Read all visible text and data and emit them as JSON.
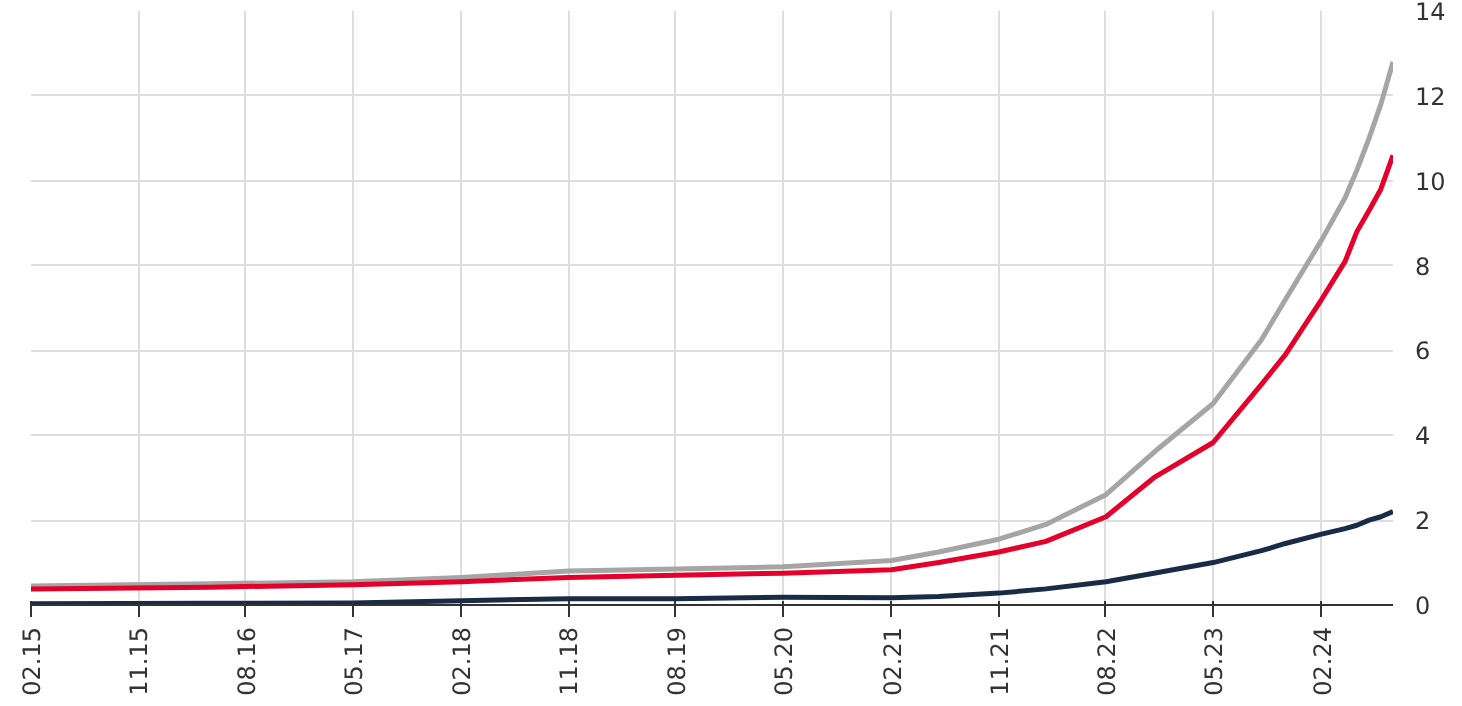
{
  "chart_data": {
    "type": "line",
    "x": [
      "2015-02",
      "2016-05",
      "2017-05",
      "2018-02",
      "2018-11",
      "2019-08",
      "2020-05",
      "2021-02",
      "2021-06",
      "2021-11",
      "2022-03",
      "2022-08",
      "2022-12",
      "2023-05",
      "2023-09",
      "2023-11",
      "2024-02",
      "2024-04",
      "2024-05",
      "2024-06",
      "2024-07",
      "2024-08"
    ],
    "series": [
      {
        "color": "#a5a5a5",
        "values": [
          0.45,
          0.5,
          0.55,
          0.65,
          0.8,
          0.85,
          0.9,
          1.05,
          1.25,
          1.55,
          1.9,
          2.6,
          3.6,
          4.75,
          6.25,
          7.2,
          8.6,
          9.6,
          10.25,
          11.0,
          11.8,
          12.8
        ]
      },
      {
        "color": "#e4002b",
        "values": [
          0.38,
          0.42,
          0.48,
          0.55,
          0.65,
          0.7,
          0.75,
          0.83,
          1.0,
          1.25,
          1.5,
          2.08,
          3.0,
          3.83,
          5.2,
          5.9,
          7.2,
          8.1,
          8.8,
          9.3,
          9.8,
          10.6
        ]
      },
      {
        "color": "#1a2b45",
        "values": [
          0.03,
          0.04,
          0.05,
          0.1,
          0.15,
          0.15,
          0.18,
          0.17,
          0.2,
          0.28,
          0.38,
          0.55,
          0.75,
          1.0,
          1.28,
          1.45,
          1.67,
          1.8,
          1.88,
          2.0,
          2.08,
          2.2
        ]
      }
    ],
    "xlim": [
      "2015-02",
      "2024-08"
    ],
    "xticks": [
      {
        "value": "2015-02",
        "label": "02.15"
      },
      {
        "value": "2015-11",
        "label": "11.15"
      },
      {
        "value": "2016-08",
        "label": "08.16"
      },
      {
        "value": "2017-05",
        "label": "05.17"
      },
      {
        "value": "2018-02",
        "label": "02.18"
      },
      {
        "value": "2018-11",
        "label": "11.18"
      },
      {
        "value": "2019-08",
        "label": "08.19"
      },
      {
        "value": "2020-05",
        "label": "05.20"
      },
      {
        "value": "2021-02",
        "label": "02.21"
      },
      {
        "value": "2021-11",
        "label": "11.21"
      },
      {
        "value": "2022-08",
        "label": "08.22"
      },
      {
        "value": "2023-05",
        "label": "05.23"
      },
      {
        "value": "2024-02",
        "label": "02.24"
      }
    ],
    "ylim": [
      0,
      14
    ],
    "yticks": [
      0,
      2,
      4,
      6,
      8,
      10,
      12,
      14
    ],
    "grid": true,
    "line_style": "solid"
  }
}
